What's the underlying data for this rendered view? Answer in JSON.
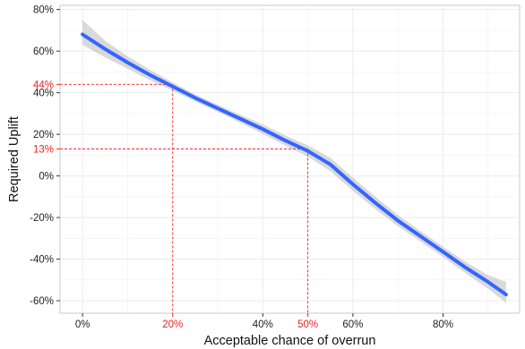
{
  "chart_data": {
    "type": "line",
    "xlabel": "Acceptable chance of overrun",
    "ylabel": "Required Uplift",
    "xlim": [
      -5,
      97
    ],
    "ylim": [
      -66,
      82
    ],
    "grid": true,
    "x_ticks": [
      {
        "value": 0,
        "label": "0%"
      },
      {
        "value": 20,
        "label": "20%"
      },
      {
        "value": 40,
        "label": "40%"
      },
      {
        "value": 50,
        "label": "50%"
      },
      {
        "value": 60,
        "label": "60%"
      },
      {
        "value": 80,
        "label": "80%"
      }
    ],
    "y_ticks": [
      {
        "value": 80,
        "label": "80%"
      },
      {
        "value": 60,
        "label": "60%"
      },
      {
        "value": 44,
        "label": "44%"
      },
      {
        "value": 40,
        "label": "40%"
      },
      {
        "value": 20,
        "label": "20%"
      },
      {
        "value": 13,
        "label": "13%"
      },
      {
        "value": 0,
        "label": "0%"
      },
      {
        "value": -20,
        "label": "-20%"
      },
      {
        "value": -40,
        "label": "-40%"
      },
      {
        "value": -60,
        "label": "-60%"
      }
    ],
    "x_minor_grid": [
      10,
      30,
      50,
      70,
      90
    ],
    "y_minor_grid": [
      70,
      50,
      30,
      10,
      -10,
      -30,
      -50
    ],
    "series": [
      {
        "x": [
          0,
          5,
          10,
          15,
          20,
          25,
          30,
          35,
          40,
          45,
          50,
          55,
          60,
          65,
          70,
          75,
          80,
          85,
          90,
          94
        ],
        "y": [
          68,
          61,
          54.5,
          48.5,
          43,
          37.5,
          32.5,
          27.5,
          22.5,
          17,
          12,
          5.5,
          -4,
          -13,
          -21.5,
          -29,
          -36.5,
          -44,
          -51,
          -57
        ],
        "band_low": [
          63,
          57,
          51.5,
          46,
          41,
          35.8,
          30.8,
          25.6,
          20.2,
          14.6,
          9.3,
          2.3,
          -7.2,
          -16,
          -24.2,
          -31.5,
          -39,
          -46.7,
          -54.3,
          -61
        ],
        "band_high": [
          75,
          65,
          57.5,
          51,
          45,
          39.2,
          34.2,
          29.4,
          24.8,
          19.4,
          14.7,
          8.7,
          -0.8,
          -10,
          -18.8,
          -26.5,
          -34,
          -41.3,
          -47.7,
          -51
        ]
      }
    ],
    "colors": {
      "line": "#3366ff",
      "band": "#cccccc",
      "highlight": "#ee2222",
      "panel": "#ffffff",
      "grid": "#ebebeb"
    },
    "highlights": [
      {
        "x": 20,
        "y": 44
      },
      {
        "x": 50,
        "y": 13
      }
    ]
  }
}
